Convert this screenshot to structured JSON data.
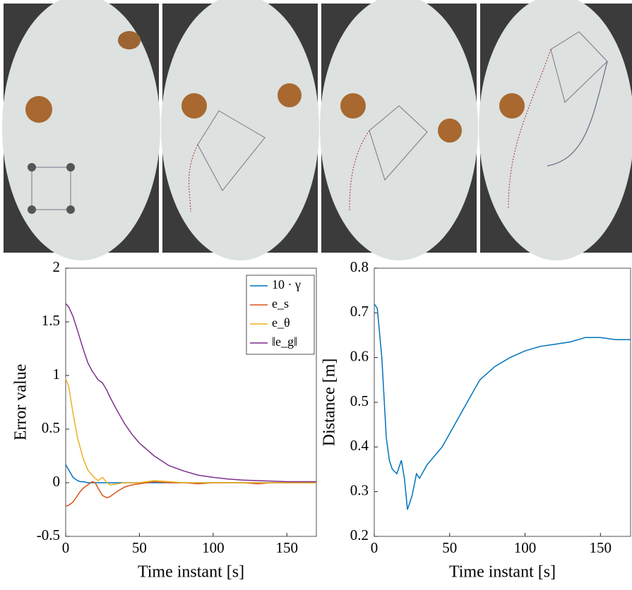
{
  "chart_data": [
    {
      "type": "line",
      "x_label": "Time instant [s]",
      "y_label": "Error value",
      "x": [
        0,
        2,
        5,
        8,
        10,
        12,
        15,
        18,
        20,
        22,
        25,
        28,
        30,
        35,
        40,
        45,
        50,
        60,
        70,
        80,
        90,
        100,
        110,
        120,
        130,
        140,
        150,
        160,
        170
      ],
      "series": [
        {
          "name": "10 · γ",
          "color": "#0072bd",
          "values": [
            0.17,
            0.12,
            0.05,
            0.02,
            0.01,
            0.01,
            0,
            0,
            0,
            0,
            0,
            0,
            0,
            0,
            0,
            0,
            0,
            0,
            0,
            0,
            0,
            0,
            0,
            0,
            0,
            0,
            0,
            0,
            0
          ]
        },
        {
          "name": "e_s",
          "color": "#d95319",
          "values": [
            -0.22,
            -0.21,
            -0.18,
            -0.12,
            -0.08,
            -0.05,
            -0.02,
            0.01,
            0,
            -0.05,
            -0.12,
            -0.14,
            -0.13,
            -0.08,
            -0.04,
            -0.02,
            -0.01,
            0.01,
            0,
            0,
            -0.01,
            0,
            0,
            0,
            -0.01,
            0,
            0,
            0,
            0
          ]
        },
        {
          "name": "e_θ",
          "color": "#edb120",
          "values": [
            0.97,
            0.9,
            0.65,
            0.42,
            0.32,
            0.22,
            0.12,
            0.07,
            0.04,
            0.02,
            0.05,
            0,
            -0.02,
            -0.01,
            0,
            0,
            0,
            0.02,
            0.01,
            0,
            0,
            0,
            0,
            0,
            0,
            0,
            0,
            0,
            0
          ]
        },
        {
          "name": "‖e_g‖",
          "color": "#7e2f8e",
          "values": [
            1.67,
            1.64,
            1.55,
            1.42,
            1.33,
            1.24,
            1.12,
            1.04,
            1,
            0.96,
            0.93,
            0.86,
            0.8,
            0.67,
            0.55,
            0.45,
            0.37,
            0.25,
            0.16,
            0.11,
            0.07,
            0.05,
            0.035,
            0.025,
            0.02,
            0.015,
            0.01,
            0.01,
            0.01
          ]
        }
      ],
      "xlim": [
        0,
        170
      ],
      "xticks": [
        0,
        50,
        100,
        150
      ],
      "ylim": [
        -0.5,
        2
      ],
      "yticks": [
        -0.5,
        0,
        0.5,
        1,
        1.5,
        2
      ],
      "legend": "upper right"
    },
    {
      "type": "line",
      "x_label": "Time instant [s]",
      "y_label": "Distance [m]",
      "x": [
        0,
        2,
        5,
        8,
        10,
        12,
        15,
        18,
        20,
        22,
        25,
        28,
        30,
        35,
        40,
        45,
        50,
        60,
        70,
        80,
        90,
        100,
        110,
        120,
        130,
        140,
        150,
        160,
        170
      ],
      "series": [
        {
          "color": "#0072bd",
          "values": [
            0.72,
            0.71,
            0.6,
            0.42,
            0.37,
            0.35,
            0.34,
            0.37,
            0.33,
            0.26,
            0.29,
            0.34,
            0.33,
            0.36,
            0.38,
            0.4,
            0.43,
            0.49,
            0.55,
            0.58,
            0.6,
            0.615,
            0.625,
            0.63,
            0.635,
            0.645,
            0.645,
            0.64,
            0.64
          ]
        }
      ],
      "xlim": [
        0,
        170
      ],
      "xticks": [
        0,
        50,
        100,
        150
      ],
      "ylim": [
        0.2,
        0.8
      ],
      "yticks": [
        0.2,
        0.3,
        0.4,
        0.5,
        0.6,
        0.7,
        0.8
      ]
    }
  ]
}
